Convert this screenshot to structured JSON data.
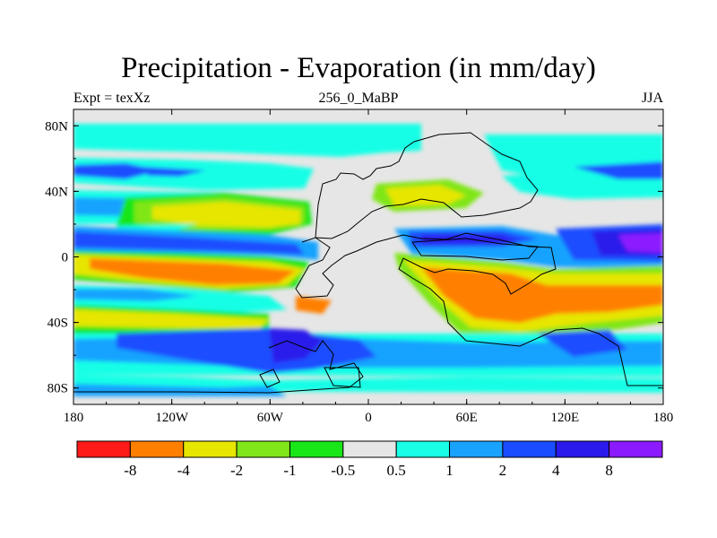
{
  "title": "Precipitation - Evaporation (in mm/day)",
  "subtitle_left": "Expt = texXz",
  "subtitle_center": "256_0_MaBP",
  "subtitle_right": "JJA",
  "map": {
    "lon_range": [
      -180,
      180
    ],
    "lat_range": [
      -90,
      90
    ],
    "x_ticks": [
      {
        "value": -180,
        "label": "180"
      },
      {
        "value": -120,
        "label": "120W"
      },
      {
        "value": -60,
        "label": "60W"
      },
      {
        "value": 0,
        "label": "0"
      },
      {
        "value": 60,
        "label": "60E"
      },
      {
        "value": 120,
        "label": "120E"
      },
      {
        "value": 180,
        "label": "180"
      }
    ],
    "y_ticks": [
      {
        "value": 80,
        "label": "80N"
      },
      {
        "value": 40,
        "label": "40N"
      },
      {
        "value": 0,
        "label": "0"
      },
      {
        "value": -40,
        "label": "40S"
      },
      {
        "value": -80,
        "label": "80S"
      }
    ]
  },
  "colorbar": {
    "colors": [
      "#ff1a1a",
      "#ff8000",
      "#e6e600",
      "#80e619",
      "#19e619",
      "#e6e6e6",
      "#19ffe6",
      "#19a3ff",
      "#1a4dff",
      "#2a1aeb",
      "#8c1aff"
    ],
    "labels": [
      "-8",
      "-4",
      "-2",
      "-1",
      "-0.5",
      "0.5",
      "1",
      "2",
      "4",
      "8"
    ]
  }
}
